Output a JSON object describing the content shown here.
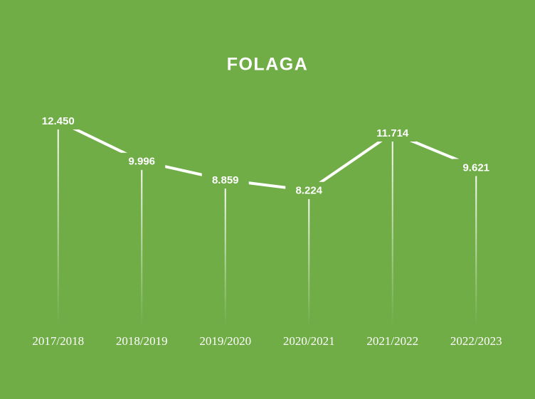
{
  "chart_data": {
    "type": "line",
    "title": "FOLAGA",
    "categories": [
      "2017/2018",
      "2018/2019",
      "2019/2020",
      "2020/2021",
      "2021/2022",
      "2022/2023"
    ],
    "values": [
      12450,
      9996,
      8859,
      8224,
      11714,
      9621
    ],
    "value_labels": [
      "12.450",
      "9.996",
      "8.859",
      "8.224",
      "11.714",
      "9.621"
    ],
    "color": "#ffffff"
  }
}
